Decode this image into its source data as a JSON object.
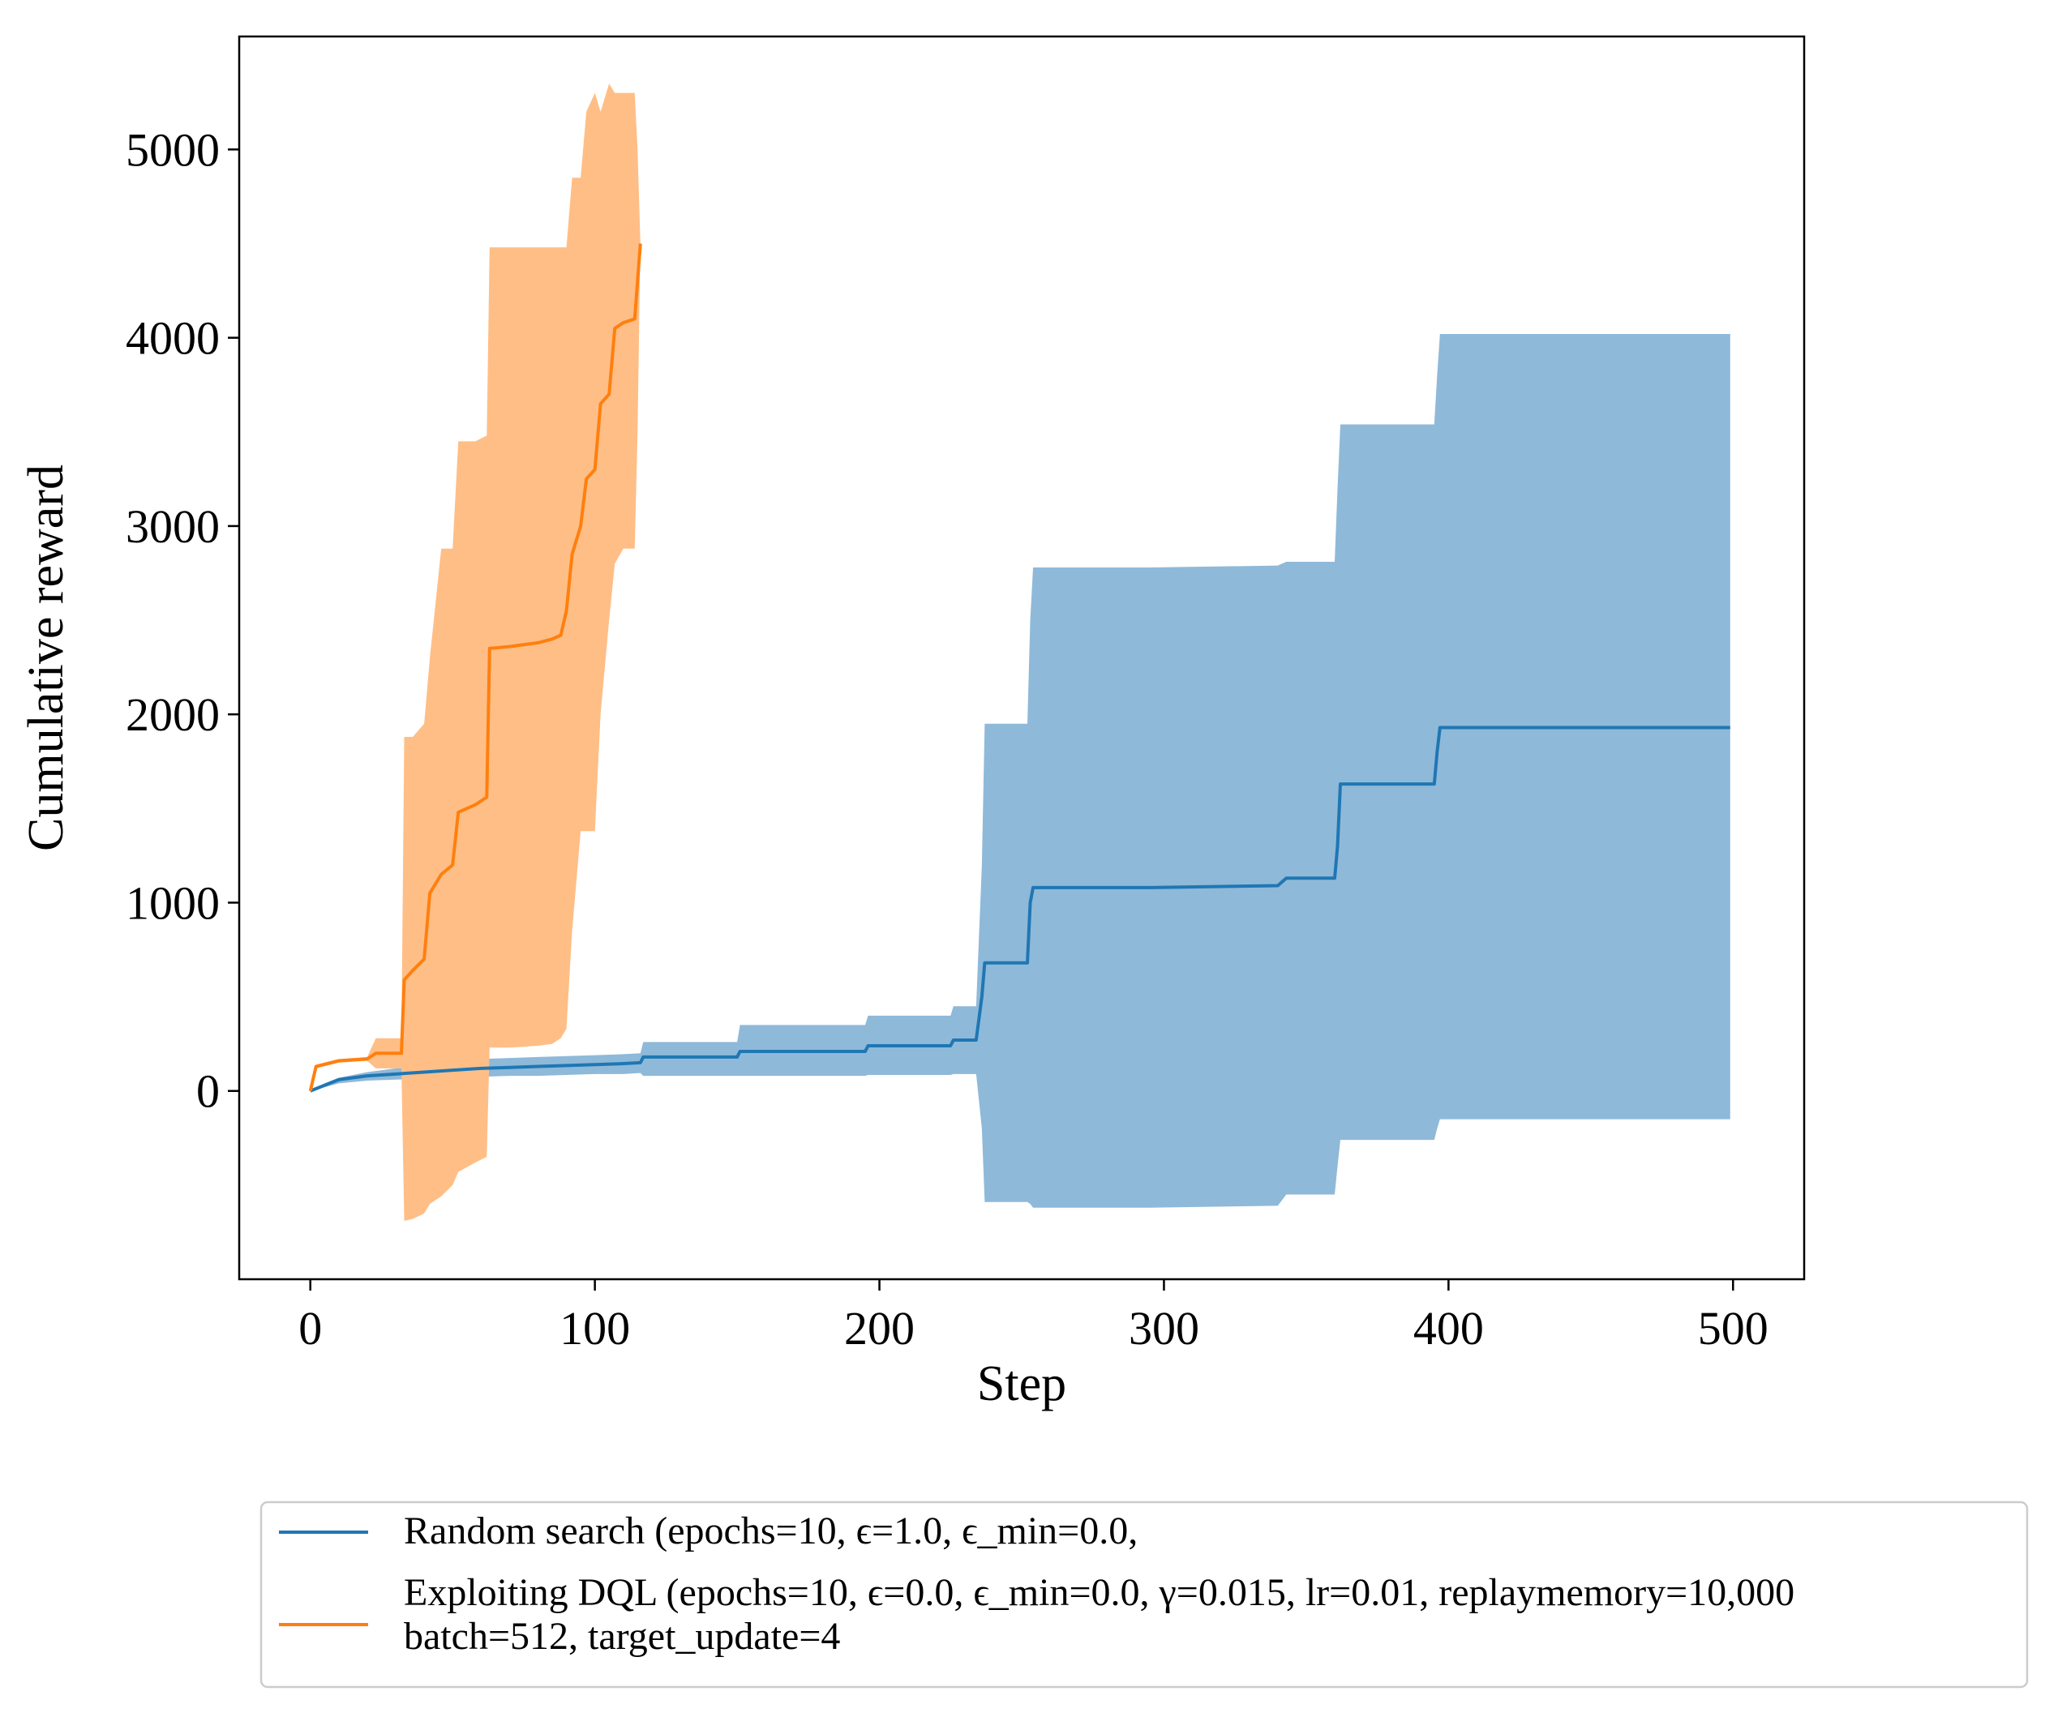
{
  "chart_data": {
    "type": "line",
    "title": "",
    "xlabel": "Step",
    "ylabel": "Cumulative reward",
    "xlim": [
      -25,
      525
    ],
    "ylim": [
      -1000,
      5600
    ],
    "xticks": [
      0,
      100,
      200,
      300,
      400,
      500
    ],
    "yticks": [
      0,
      1000,
      2000,
      3000,
      4000,
      5000
    ],
    "grid": false,
    "legend_position": "below",
    "colors": {
      "random": "#1f77b4",
      "random_band": "#8fb9d9",
      "dql": "#ff7f0e",
      "dql_band": "#ffbe86"
    },
    "series": [
      {
        "name": "Random search",
        "label_lines": [
          "Random search (epochs=10, ϵ=1.0, ϵ_min=0.0,"
        ],
        "color": "#1f77b4",
        "band_color": "#8fb9d9",
        "x": [
          0,
          5,
          10,
          20,
          30,
          40,
          50,
          60,
          70,
          80,
          90,
          100,
          110,
          116,
          117,
          150,
          151,
          195,
          196,
          225,
          226,
          234,
          236,
          237,
          252,
          253,
          254,
          295,
          340,
          343,
          360,
          361,
          362,
          395,
          396,
          397,
          499
        ],
        "mean": [
          0,
          30,
          60,
          80,
          90,
          100,
          110,
          120,
          125,
          130,
          135,
          140,
          145,
          150,
          180,
          180,
          210,
          210,
          240,
          240,
          270,
          270,
          500,
          680,
          680,
          1000,
          1080,
          1080,
          1090,
          1130,
          1130,
          1300,
          1630,
          1630,
          1800,
          1930,
          1930
        ],
        "upper": [
          0,
          40,
          70,
          100,
          120,
          140,
          160,
          170,
          175,
          180,
          185,
          190,
          195,
          200,
          260,
          260,
          350,
          350,
          400,
          400,
          450,
          450,
          1200,
          1950,
          1950,
          2500,
          2780,
          2780,
          2790,
          2810,
          2810,
          3200,
          3540,
          3540,
          3800,
          4020,
          4020
        ],
        "lower": [
          0,
          20,
          40,
          55,
          60,
          65,
          70,
          75,
          80,
          80,
          85,
          90,
          90,
          95,
          80,
          80,
          80,
          80,
          85,
          85,
          90,
          90,
          -200,
          -590,
          -590,
          -600,
          -620,
          -620,
          -610,
          -550,
          -550,
          -400,
          -260,
          -260,
          -200,
          -150,
          -150
        ]
      },
      {
        "name": "Exploiting DQL",
        "label_lines": [
          "Exploiting DQL (epochs=10, ϵ=0.0, ϵ_min=0.0, γ=0.015, lr=0.01, replaymemory=10,000",
          "batch=512, target_update=4"
        ],
        "color": "#ff7f0e",
        "band_color": "#ffbe86",
        "x": [
          0,
          2,
          10,
          20,
          23,
          32,
          33,
          36,
          40,
          42,
          46,
          50,
          52,
          58,
          62,
          63,
          70,
          80,
          85,
          88,
          90,
          92,
          95,
          97,
          100,
          102,
          105,
          107,
          110,
          114,
          115,
          116
        ],
        "mean": [
          0,
          130,
          160,
          170,
          200,
          200,
          590,
          640,
          700,
          1050,
          1150,
          1200,
          1480,
          1520,
          1560,
          2350,
          2360,
          2380,
          2400,
          2420,
          2550,
          2850,
          3000,
          3250,
          3300,
          3650,
          3700,
          4050,
          4080,
          4100,
          4300,
          4500
        ],
        "upper": [
          0,
          140,
          170,
          180,
          280,
          280,
          1880,
          1880,
          1950,
          2300,
          2880,
          2880,
          3450,
          3450,
          3480,
          4480,
          4480,
          4480,
          4480,
          4480,
          4480,
          4850,
          4850,
          5200,
          5300,
          5200,
          5350,
          5300,
          5300,
          5300,
          5000,
          4500
        ],
        "lower": [
          0,
          120,
          150,
          160,
          120,
          120,
          -690,
          -680,
          -650,
          -600,
          -560,
          -500,
          -430,
          -380,
          -350,
          230,
          230,
          240,
          250,
          280,
          330,
          850,
          1380,
          1380,
          1380,
          2000,
          2500,
          2800,
          2880,
          2880,
          3500,
          4500
        ]
      }
    ]
  }
}
